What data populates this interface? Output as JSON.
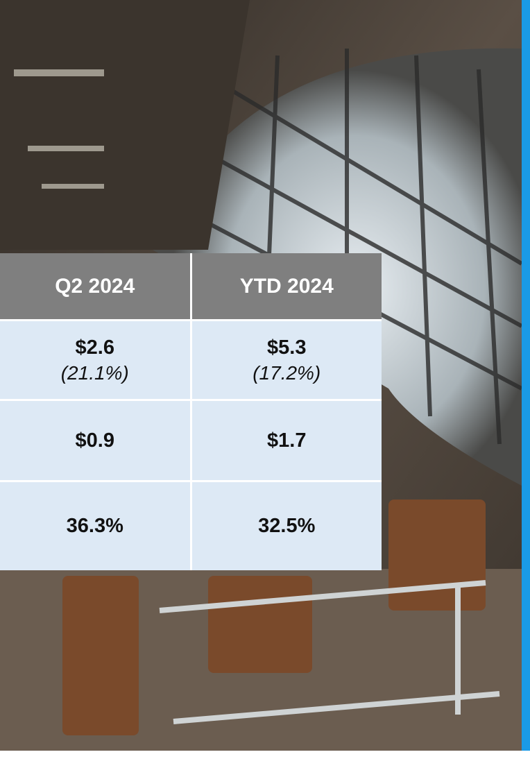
{
  "table": {
    "header": [
      "Q2 2024",
      "YTD 2024"
    ],
    "rows": [
      [
        {
          "main": "$2.6",
          "sub": "(21.1%)"
        },
        {
          "main": "$5.3",
          "sub": "(17.2%)"
        }
      ],
      [
        {
          "main": "$0.9"
        },
        {
          "main": "$1.7"
        }
      ],
      [
        {
          "main": "36.3%"
        },
        {
          "main": "32.5%"
        }
      ]
    ]
  }
}
